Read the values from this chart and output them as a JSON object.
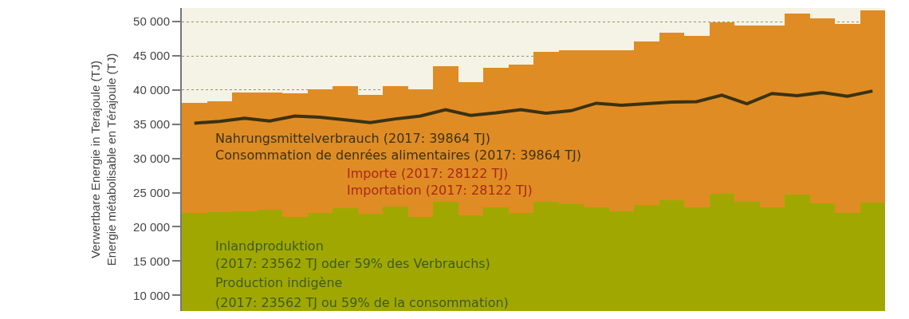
{
  "chart_data": {
    "type": "bar",
    "stacked": true,
    "ylabel": "Verwertbare Energie in Terajoule (TJ)\nEnergie métabolisable en Térajoule (TJ)",
    "categories": [
      null,
      null,
      null,
      null,
      null,
      null,
      null,
      null,
      null,
      null,
      null,
      null,
      null,
      null,
      null,
      null,
      null,
      null,
      null,
      null,
      null,
      null,
      null,
      null,
      null,
      null,
      null,
      null
    ],
    "ylim": [
      7700,
      52000
    ],
    "yticks": [
      {
        "value": 10000,
        "label": "10 000"
      },
      {
        "value": 15000,
        "label": "15 000"
      },
      {
        "value": 20000,
        "label": "20 000"
      },
      {
        "value": 25000,
        "label": "25 000"
      },
      {
        "value": 30000,
        "label": "30 000"
      },
      {
        "value": 35000,
        "label": "35 000"
      },
      {
        "value": 40000,
        "label": "40 000"
      },
      {
        "value": 45000,
        "label": "45 000"
      },
      {
        "value": 50000,
        "label": "50 000"
      }
    ],
    "tick_labels": "y",
    "grid": "y",
    "series": [
      {
        "color": "#a0a800",
        "values": [
          22050,
          22140,
          22270,
          22520,
          21510,
          22050,
          22770,
          21950,
          22990,
          21510,
          23620,
          21730,
          22830,
          22050,
          23620,
          23300,
          22830,
          22270,
          23150,
          23930,
          22890,
          24880,
          23620,
          22890,
          24720,
          23460,
          22050,
          23562
        ]
      },
      {
        "color": "#e08c24",
        "values": [
          16030,
          16260,
          17390,
          17140,
          17990,
          18080,
          17830,
          17390,
          17540,
          18620,
          19900,
          19430,
          20440,
          21690,
          22000,
          22500,
          23000,
          23500,
          24000,
          24500,
          25000,
          25000,
          25800,
          26500,
          26500,
          27000,
          27600,
          28122
        ]
      },
      {
        "type": "line",
        "color": "#3a3212",
        "values": [
          35160,
          35410,
          35880,
          35470,
          36200,
          36040,
          35660,
          35250,
          35780,
          36200,
          37140,
          36290,
          36670,
          37140,
          36600,
          36980,
          38080,
          37770,
          38020,
          38240,
          38300,
          39250,
          37990,
          39500,
          39180,
          39650,
          39090,
          39864
        ]
      }
    ],
    "annotations": [
      "Nahrungsmittelverbrauch (2017: 39864 TJ)",
      "Consommation de denrées alimentaires (2017: 39864 TJ)",
      "Importe (2017: 28122 TJ)",
      "Importation (2017: 28122 TJ)",
      "Inlandproduktion",
      "(2017: 23562 TJ oder 59% des Verbrauchs)",
      "Production indigène",
      "(2017: 23562 TJ ou 59% de la consommation)"
    ]
  }
}
